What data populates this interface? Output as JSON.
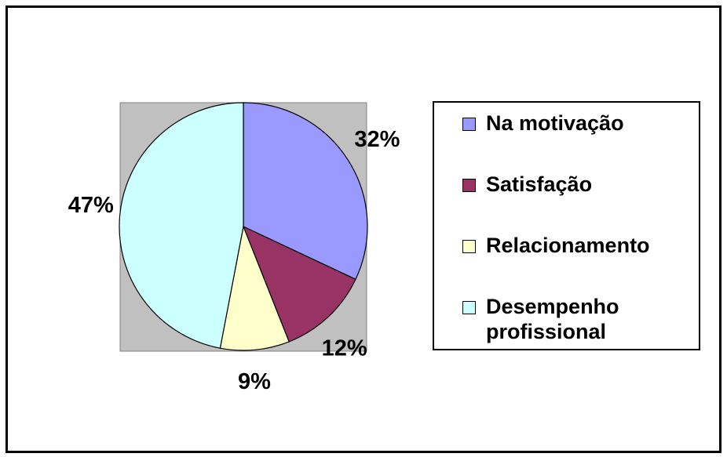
{
  "chart_data": {
    "type": "pie",
    "slices": [
      {
        "label": "Na motivação",
        "value": 32,
        "pct_label": "32%",
        "color": "#9999FF"
      },
      {
        "label": "Satisfação",
        "value": 12,
        "pct_label": "12%",
        "color": "#993366"
      },
      {
        "label": "Relacionamento",
        "value": 9,
        "pct_label": "9%",
        "color": "#FFFFCC"
      },
      {
        "label": "Desempenho profissional",
        "value": 47,
        "pct_label": "47%",
        "color": "#CCFFFF"
      }
    ],
    "plot_area_color": "#C0C0C0",
    "start_angle": "12 o'clock",
    "direction": "clockwise",
    "legend_position": "right"
  }
}
